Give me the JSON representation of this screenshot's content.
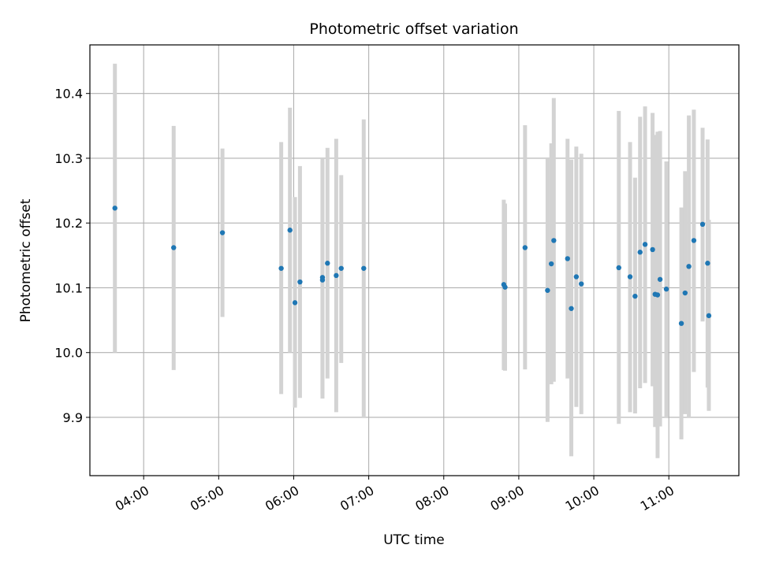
{
  "chart_data": {
    "type": "scatter",
    "title": "Photometric offset variation",
    "xlabel": "UTC time",
    "ylabel": "Photometric offset",
    "xlim": [
      "03:17",
      "11:56"
    ],
    "ylim": [
      9.81,
      10.475
    ],
    "grid": true,
    "error_bar_color": "#d3d3d3",
    "point_color": "#1f77b4",
    "x_ticks": [
      "04:00",
      "05:00",
      "06:00",
      "07:00",
      "08:00",
      "09:00",
      "10:00",
      "11:00"
    ],
    "y_ticks": [
      {
        "value": 9.9,
        "label": "9.9"
      },
      {
        "value": 10.0,
        "label": "10.0"
      },
      {
        "value": 10.1,
        "label": "10.1"
      },
      {
        "value": 10.2,
        "label": "10.2"
      },
      {
        "value": 10.3,
        "label": "10.3"
      },
      {
        "value": 10.4,
        "label": "10.4"
      }
    ],
    "points": [
      {
        "t": "03:37",
        "y": 10.223,
        "lo": 10.0,
        "hi": 10.446
      },
      {
        "t": "04:24",
        "y": 10.162,
        "lo": 9.973,
        "hi": 10.35
      },
      {
        "t": "05:03",
        "y": 10.185,
        "lo": 10.055,
        "hi": 10.315
      },
      {
        "t": "05:50",
        "y": 10.13,
        "lo": 9.936,
        "hi": 10.325
      },
      {
        "t": "05:57",
        "y": 10.189,
        "lo": 10.0,
        "hi": 10.378
      },
      {
        "t": "06:01",
        "y": 10.077,
        "lo": 9.915,
        "hi": 10.24
      },
      {
        "t": "06:05",
        "y": 10.109,
        "lo": 9.93,
        "hi": 10.288
      },
      {
        "t": "06:23",
        "y": 10.112,
        "lo": 9.929,
        "hi": 10.3
      },
      {
        "t": "06:23",
        "y": 10.116,
        "lo": 9.935,
        "hi": 10.296
      },
      {
        "t": "06:27",
        "y": 10.138,
        "lo": 9.96,
        "hi": 10.316
      },
      {
        "t": "06:34",
        "y": 10.119,
        "lo": 9.908,
        "hi": 10.33
      },
      {
        "t": "06:38",
        "y": 10.13,
        "lo": 9.984,
        "hi": 10.274
      },
      {
        "t": "06:56",
        "y": 10.13,
        "lo": 9.9,
        "hi": 10.36
      },
      {
        "t": "08:48",
        "y": 10.105,
        "lo": 9.973,
        "hi": 10.236
      },
      {
        "t": "08:49",
        "y": 10.101,
        "lo": 9.972,
        "hi": 10.23
      },
      {
        "t": "09:05",
        "y": 10.162,
        "lo": 9.974,
        "hi": 10.351
      },
      {
        "t": "09:23",
        "y": 10.096,
        "lo": 9.893,
        "hi": 10.3
      },
      {
        "t": "09:26",
        "y": 10.137,
        "lo": 9.951,
        "hi": 10.323
      },
      {
        "t": "09:28",
        "y": 10.173,
        "lo": 9.955,
        "hi": 10.393
      },
      {
        "t": "09:39",
        "y": 10.145,
        "lo": 9.96,
        "hi": 10.33
      },
      {
        "t": "09:42",
        "y": 10.068,
        "lo": 9.84,
        "hi": 10.298
      },
      {
        "t": "09:46",
        "y": 10.117,
        "lo": 9.916,
        "hi": 10.318
      },
      {
        "t": "09:50",
        "y": 10.106,
        "lo": 9.905,
        "hi": 10.307
      },
      {
        "t": "10:20",
        "y": 10.131,
        "lo": 9.89,
        "hi": 10.373
      },
      {
        "t": "10:29",
        "y": 10.117,
        "lo": 9.908,
        "hi": 10.325
      },
      {
        "t": "10:33",
        "y": 10.087,
        "lo": 9.906,
        "hi": 10.27
      },
      {
        "t": "10:37",
        "y": 10.155,
        "lo": 9.945,
        "hi": 10.364
      },
      {
        "t": "10:41",
        "y": 10.167,
        "lo": 9.953,
        "hi": 10.38
      },
      {
        "t": "10:47",
        "y": 10.159,
        "lo": 9.948,
        "hi": 10.37
      },
      {
        "t": "10:49",
        "y": 10.09,
        "lo": 9.885,
        "hi": 10.336
      },
      {
        "t": "10:51",
        "y": 10.089,
        "lo": 9.837,
        "hi": 10.341
      },
      {
        "t": "10:53",
        "y": 10.113,
        "lo": 9.886,
        "hi": 10.342
      },
      {
        "t": "10:58",
        "y": 10.098,
        "lo": 9.9,
        "hi": 10.295
      },
      {
        "t": "11:10",
        "y": 10.045,
        "lo": 9.866,
        "hi": 10.224
      },
      {
        "t": "11:13",
        "y": 10.092,
        "lo": 9.905,
        "hi": 10.28
      },
      {
        "t": "11:16",
        "y": 10.133,
        "lo": 9.9,
        "hi": 10.366
      },
      {
        "t": "11:20",
        "y": 10.173,
        "lo": 9.97,
        "hi": 10.375
      },
      {
        "t": "11:27",
        "y": 10.198,
        "lo": 10.048,
        "hi": 10.347
      },
      {
        "t": "11:31",
        "y": 10.138,
        "lo": 9.946,
        "hi": 10.329
      },
      {
        "t": "11:32",
        "y": 10.057,
        "lo": 9.91,
        "hi": 10.205
      }
    ]
  }
}
